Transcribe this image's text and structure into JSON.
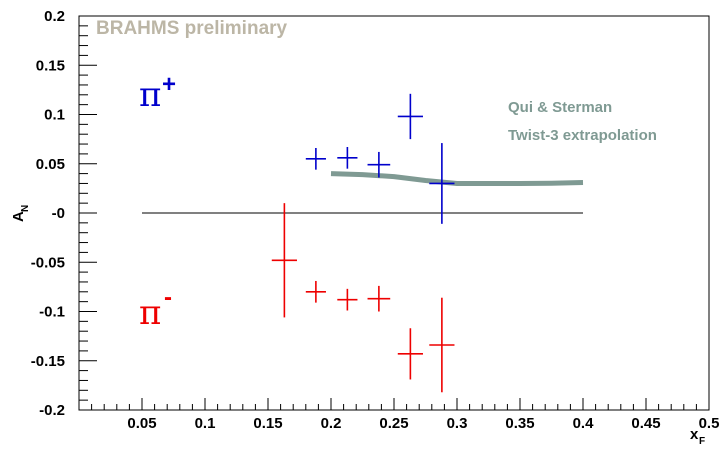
{
  "chart_data": {
    "type": "scatter",
    "title": "",
    "annotation": "BRAHMS preliminary",
    "xlabel": "x",
    "xlabel_sub": "F",
    "ylabel": "A",
    "ylabel_sub": "N",
    "xlim": [
      0.0,
      0.5
    ],
    "ylim": [
      -0.2,
      0.2
    ],
    "x_ticks": [
      {
        "value": 0.05,
        "label": "0.05"
      },
      {
        "value": 0.1,
        "label": "0.1"
      },
      {
        "value": 0.15,
        "label": "0.15"
      },
      {
        "value": 0.2,
        "label": "0.2"
      },
      {
        "value": 0.25,
        "label": "0.25"
      },
      {
        "value": 0.3,
        "label": "0.3"
      },
      {
        "value": 0.35,
        "label": "0.35"
      },
      {
        "value": 0.4,
        "label": "0.4"
      },
      {
        "value": 0.45,
        "label": "0.45"
      },
      {
        "value": 0.5,
        "label": "0.5"
      }
    ],
    "y_ticks": [
      {
        "value": -0.2,
        "label": "-0.2"
      },
      {
        "value": -0.15,
        "label": "-0.15"
      },
      {
        "value": -0.1,
        "label": "-0.1"
      },
      {
        "value": -0.05,
        "label": "-0.05"
      },
      {
        "value": 0,
        "label": "-0"
      },
      {
        "value": 0.05,
        "label": "0.05"
      },
      {
        "value": 0.1,
        "label": "0.1"
      },
      {
        "value": 0.15,
        "label": "0.15"
      },
      {
        "value": 0.2,
        "label": "0.2"
      }
    ],
    "zero_line": {
      "x_from": 0.05,
      "x_to": 0.4
    },
    "series": [
      {
        "name": "π+",
        "label_base": "π",
        "label_sup": "+",
        "color": "#0000cc",
        "points": [
          {
            "x": 0.188,
            "y": 0.055,
            "xerr": 0.008,
            "yerr": 0.011
          },
          {
            "x": 0.213,
            "y": 0.056,
            "xerr": 0.008,
            "yerr": 0.011
          },
          {
            "x": 0.238,
            "y": 0.049,
            "xerr": 0.009,
            "yerr": 0.013
          },
          {
            "x": 0.263,
            "y": 0.098,
            "xerr": 0.01,
            "yerr": 0.023
          },
          {
            "x": 0.288,
            "y": 0.03,
            "xerr": 0.01,
            "yerr": 0.041
          }
        ]
      },
      {
        "name": "π-",
        "label_base": "π",
        "label_sup": "-",
        "color": "#ee0000",
        "points": [
          {
            "x": 0.163,
            "y": -0.048,
            "xerr": 0.01,
            "yerr": 0.058
          },
          {
            "x": 0.188,
            "y": -0.08,
            "xerr": 0.008,
            "yerr": 0.011
          },
          {
            "x": 0.213,
            "y": -0.088,
            "xerr": 0.008,
            "yerr": 0.011
          },
          {
            "x": 0.238,
            "y": -0.087,
            "xerr": 0.009,
            "yerr": 0.013
          },
          {
            "x": 0.263,
            "y": -0.143,
            "xerr": 0.01,
            "yerr": 0.026
          },
          {
            "x": 0.288,
            "y": -0.134,
            "xerr": 0.01,
            "yerr": 0.048
          }
        ]
      }
    ],
    "theory_curve": {
      "label_line1": "Qui & Sterman",
      "label_line2": "Twist-3 extrapolation",
      "color": "#7f9a93",
      "x": [
        0.2,
        0.225,
        0.25,
        0.275,
        0.3,
        0.325,
        0.35,
        0.375,
        0.4
      ],
      "y": [
        0.04,
        0.039,
        0.037,
        0.033,
        0.03,
        0.03,
        0.03,
        0.0303,
        0.031
      ]
    },
    "annotation_color": "#bcb6a6",
    "grid": false
  }
}
